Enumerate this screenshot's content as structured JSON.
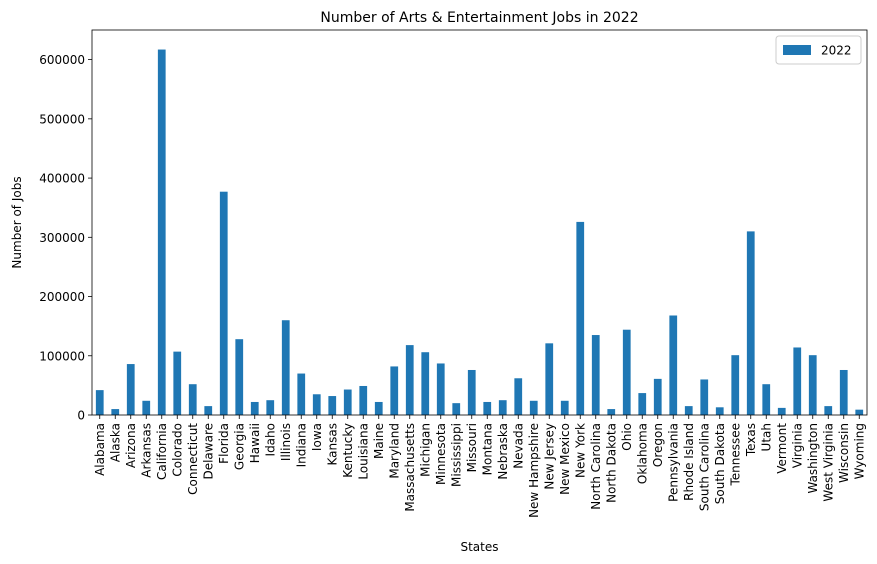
{
  "chart_data": {
    "type": "bar",
    "title": "Number of Arts & Entertainment Jobs in 2022",
    "xlabel": "States",
    "ylabel": "Number of Jobs",
    "ylim": [
      0,
      650000
    ],
    "yticks": [
      "0",
      "100000",
      "200000",
      "300000",
      "400000",
      "500000",
      "600000"
    ],
    "legend_position": "top-right",
    "grid": false,
    "bar_color": "#1f77b4",
    "categories": [
      "Alabama",
      "Alaska",
      "Arizona",
      "Arkansas",
      "California",
      "Colorado",
      "Connecticut",
      "Delaware",
      "Florida",
      "Georgia",
      "Hawaii",
      "Idaho",
      "Illinois",
      "Indiana",
      "Iowa",
      "Kansas",
      "Kentucky",
      "Louisiana",
      "Maine",
      "Maryland",
      "Massachusetts",
      "Michigan",
      "Minnesota",
      "Mississippi",
      "Missouri",
      "Montana",
      "Nebraska",
      "Nevada",
      "New Hampshire",
      "New Jersey",
      "New Mexico",
      "New York",
      "North Carolina",
      "North Dakota",
      "Ohio",
      "Oklahoma",
      "Oregon",
      "Pennsylvania",
      "Rhode Island",
      "South Carolina",
      "South Dakota",
      "Tennessee",
      "Texas",
      "Utah",
      "Vermont",
      "Virginia",
      "Washington",
      "West Virginia",
      "Wisconsin",
      "Wyoming"
    ],
    "series": [
      {
        "name": "2022",
        "values": [
          42000,
          10000,
          86000,
          24000,
          617000,
          107000,
          52000,
          15000,
          377000,
          128000,
          22000,
          25000,
          160000,
          70000,
          35000,
          32000,
          43000,
          49000,
          22000,
          82000,
          118000,
          106000,
          87000,
          20000,
          76000,
          22000,
          25000,
          62000,
          24000,
          121000,
          24000,
          326000,
          135000,
          10000,
          144000,
          37000,
          61000,
          168000,
          15000,
          60000,
          13000,
          101000,
          310000,
          52000,
          12000,
          114000,
          101000,
          15000,
          76000,
          9000
        ]
      }
    ]
  }
}
